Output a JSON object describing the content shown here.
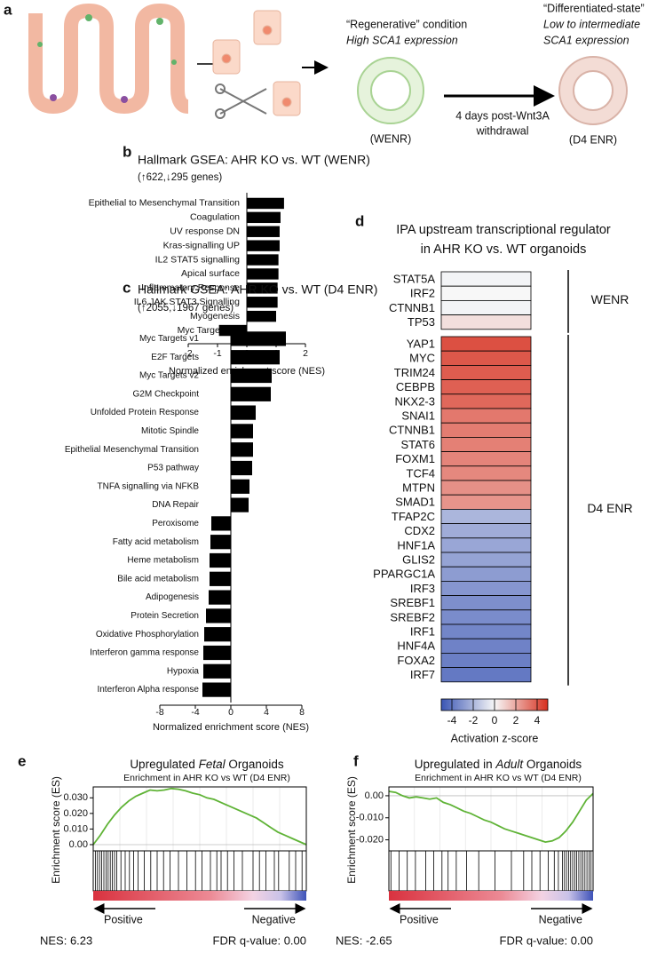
{
  "panel_labels": [
    "a",
    "b",
    "c",
    "d",
    "e",
    "f"
  ],
  "diagram": {
    "regen_condition": "“Regenerative” condition",
    "regen_expression": "High SCA1 expression",
    "regen_name": "(WENR)",
    "step_line1": "4 days post-Wnt3A",
    "step_line2": "withdrawal",
    "diff_condition": "“Differentiated-state”",
    "diff_expression_line1": "Low to intermediate",
    "diff_expression_line2": "SCA1 expression",
    "diff_name": "(D4 ENR)"
  },
  "chart_data": [
    {
      "type": "hbar",
      "title": "Hallmark GSEA: AHR KO vs. WT (WENR)",
      "subtitle": "(↑622,↓295 genes)",
      "categories": [
        "Epithelial to Mesenchymal Transition",
        "Coagulation",
        "UV response DN",
        "Kras-signalling UP",
        "IL2 STAT5 signalling",
        "Apical surface",
        "Inflammatory Response",
        "IL6 JAK STAT3 Signalling",
        "Myogenesis",
        "Myc Targets v2"
      ],
      "values": [
        1.27,
        1.15,
        1.12,
        1.12,
        1.08,
        1.08,
        1.05,
        1.05,
        1.0,
        -0.95
      ],
      "color": "#000000",
      "xlim": [
        -2,
        2
      ],
      "xticks": [
        -2,
        -1,
        0,
        1,
        2
      ],
      "xlabel": "Normalized enrichment score (NES)"
    },
    {
      "type": "hbar",
      "title": "Hallmark GSEA: AHR KO vs. WT (D4 ENR)",
      "subtitle": "(↑2055,↓1967 genes)",
      "categories": [
        "Myc Targets v1",
        "E2F Targets",
        "Myc Targets v2",
        "G2M Checkpoint",
        "Unfolded Protein Response",
        "Mitotic Spindle",
        "Epithelial Mesenchymal Transition",
        "P53 pathway",
        "TNFA signalling via NFKB",
        "DNA Repair",
        "Peroxisome",
        "Fatty acid metabolism",
        "Heme metabolism",
        "Bile acid metabolism",
        "Adipogenesis",
        "Protein Secretion",
        "Oxidative Phosphorylation",
        "Interferon gamma response",
        "Hypoxia",
        "Interferon Alpha response"
      ],
      "values": [
        6.2,
        5.5,
        4.6,
        4.5,
        2.8,
        2.5,
        2.5,
        2.4,
        2.1,
        2.0,
        -2.2,
        -2.3,
        -2.4,
        -2.4,
        -2.5,
        -2.8,
        -3.0,
        -3.1,
        -3.1,
        -3.2
      ],
      "color": "#000000",
      "xlim": [
        -8,
        8
      ],
      "xticks": [
        -8,
        -4,
        0,
        4,
        8
      ],
      "xlabel": "Normalized enrichment score (NES)"
    },
    {
      "type": "heatmap",
      "title": [
        "IPA upstream transcriptional regulator",
        "in AHR KO vs. WT organoids"
      ],
      "groups": [
        {
          "name": "WENR",
          "categories": [
            "STAT5A",
            "IRF2",
            "CTNNB1",
            "TP53"
          ],
          "values": [
            -0.1,
            0,
            -0.1,
            0.6
          ]
        },
        {
          "name": "D4 ENR",
          "categories": [
            "YAP1",
            "MYC",
            "TRIM24",
            "CEBPB",
            "NKX2-3",
            "SNAI1",
            "CTNNB1",
            "STAT6",
            "FOXM1",
            "TCF4",
            "MTPN",
            "SMAD1",
            "TFAP2C",
            "CDX2",
            "HNF1A",
            "GLIS2",
            "PPARGC1A",
            "IRF3",
            "SREBF1",
            "SREBF2",
            "IRF1",
            "HNF4A",
            "FOXA2",
            "IRF7"
          ],
          "values": [
            4.2,
            4.0,
            3.9,
            3.8,
            3.6,
            3.2,
            3.1,
            3.0,
            2.9,
            2.8,
            2.6,
            2.5,
            -2.0,
            -2.3,
            -2.5,
            -2.6,
            -2.8,
            -3.0,
            -3.2,
            -3.3,
            -3.5,
            -3.6,
            -3.7,
            -3.9
          ]
        }
      ],
      "colors": [
        "#3a55b4",
        "#f7f7f7",
        "#d7301f"
      ],
      "clim": [
        -5,
        5
      ],
      "cticks": [
        -4,
        -2,
        0,
        2,
        4
      ],
      "colorbar_label": "Activation z-score"
    },
    {
      "type": "gsea",
      "title_parts": [
        "Upregulated ",
        "Fetal",
        " Organoids"
      ],
      "title_italic_part": 1,
      "subtitle": "Enrichment in AHR KO vs WT (D4 ENR)",
      "ylabel": "Enrichment score (ES)",
      "values": [
        0,
        0.006,
        0.013,
        0.019,
        0.024,
        0.028,
        0.031,
        0.033,
        0.035,
        0.0345,
        0.035,
        0.036,
        0.0355,
        0.0345,
        0.033,
        0.032,
        0.03,
        0.029,
        0.027,
        0.025,
        0.023,
        0.021,
        0.019,
        0.017,
        0.014,
        0.011,
        0.008,
        0.006,
        0.004,
        0.002,
        0
      ],
      "color": "#5fb336",
      "ylim": [
        -0.004,
        0.037
      ],
      "yticks": [
        {
          "value": 0.03,
          "label": "0.030"
        },
        {
          "value": 0.02,
          "label": "0.020"
        },
        {
          "value": 0.01,
          "label": "0.010"
        },
        {
          "value": 0,
          "label": "0.00"
        }
      ],
      "hits": [
        0,
        0.01,
        0.02,
        0.03,
        0.04,
        0.05,
        0.06,
        0.07,
        0.08,
        0.09,
        0.1,
        0.11,
        0.13,
        0.15,
        0.17,
        0.19,
        0.21,
        0.24,
        0.27,
        0.3,
        0.33,
        0.36,
        0.4,
        0.44,
        0.48,
        0.51,
        0.55,
        0.58,
        0.6,
        0.63,
        0.66,
        0.7,
        0.75,
        0.78,
        0.81,
        0.85,
        0.87,
        0.92,
        0.95,
        0.98
      ],
      "left_label": "Positive",
      "right_label": "Negative",
      "nes_label": "NES: 6.23",
      "fdr_label": "FDR q-value: 0.00"
    },
    {
      "type": "gsea",
      "title_parts": [
        "Upregulated in ",
        "Adult",
        " Organoids"
      ],
      "title_italic_part": 1,
      "subtitle": "Enrichment in AHR KO vs WT (D4 ENR)",
      "ylabel": "Enrichment score (ES)",
      "values": [
        0.002,
        0.0015,
        0,
        -0.001,
        -0.0005,
        -0.001,
        -0.0015,
        -0.001,
        -0.003,
        -0.004,
        -0.0055,
        -0.007,
        -0.008,
        -0.0095,
        -0.011,
        -0.012,
        -0.0135,
        -0.015,
        -0.016,
        -0.017,
        -0.018,
        -0.019,
        -0.02,
        -0.021,
        -0.0205,
        -0.019,
        -0.016,
        -0.012,
        -0.007,
        -0.002,
        0.001
      ],
      "color": "#5fb336",
      "ylim": [
        -0.025,
        0.004
      ],
      "yticks": [
        {
          "value": 0,
          "label": "0.00"
        },
        {
          "value": -0.01,
          "label": "-0.010"
        },
        {
          "value": -0.02,
          "label": "-0.020"
        }
      ],
      "hits": [
        0.01,
        0.05,
        0.09,
        0.13,
        0.18,
        0.22,
        0.26,
        0.29,
        0.33,
        0.38,
        0.44,
        0.52,
        0.6,
        0.66,
        0.7,
        0.74,
        0.78,
        0.81,
        0.83,
        0.85,
        0.86,
        0.87,
        0.88,
        0.89,
        0.9,
        0.91,
        0.92,
        0.93,
        0.94,
        0.95,
        0.96,
        0.97,
        0.98,
        0.99
      ],
      "left_label": "Positive",
      "right_label": "Negative",
      "nes_label": "NES: -2.65",
      "fdr_label": "FDR q-value: 0.00"
    }
  ]
}
